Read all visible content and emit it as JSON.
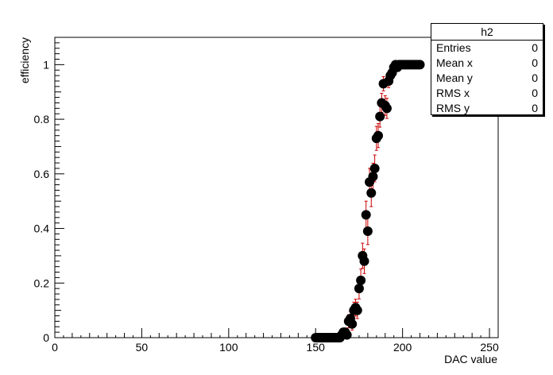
{
  "chart_data": {
    "type": "scatter",
    "title": "",
    "xlabel": "DAC value",
    "ylabel": "efficiency",
    "xlim": [
      0,
      255
    ],
    "ylim": [
      0,
      1.1
    ],
    "x_ticks": [
      0,
      50,
      100,
      150,
      200,
      250
    ],
    "y_ticks": [
      0,
      0.2,
      0.4,
      0.6,
      0.8,
      1
    ],
    "x_tick_labels": [
      "0",
      "50",
      "100",
      "150",
      "200",
      "250"
    ],
    "y_tick_labels": [
      "0",
      "0.2",
      "0.4",
      "0.6",
      "0.8",
      "1"
    ],
    "marker_color": "#000000",
    "error_bar_color": "#cc0000",
    "series": [
      {
        "name": "h2",
        "x": [
          150,
          151,
          152,
          153,
          154,
          155,
          156,
          157,
          158,
          159,
          160,
          161,
          162,
          163,
          164,
          165,
          166,
          167,
          168,
          169,
          170,
          171,
          172,
          173,
          174,
          175,
          176,
          177,
          178,
          179,
          180,
          181,
          182,
          183,
          184,
          185,
          186,
          187,
          188,
          189,
          190,
          191,
          192,
          193,
          194,
          195,
          196,
          197,
          198,
          199,
          200,
          201,
          202,
          203,
          204,
          205,
          206,
          207,
          208,
          209,
          210
        ],
        "y": [
          0,
          0,
          0,
          0,
          0,
          0,
          0,
          0,
          0,
          0,
          0,
          0,
          0,
          0,
          0,
          0.01,
          0.02,
          0.02,
          0.01,
          0.06,
          0.07,
          0.05,
          0.1,
          0.11,
          0.1,
          0.18,
          0.21,
          0.3,
          0.28,
          0.45,
          0.39,
          0.57,
          0.53,
          0.59,
          0.62,
          0.73,
          0.74,
          0.81,
          0.86,
          0.93,
          0.85,
          0.84,
          0.94,
          0.96,
          0.97,
          0.99,
          1,
          0.99,
          1,
          1,
          1,
          1,
          1,
          1,
          1,
          1,
          1,
          1,
          1,
          1,
          1
        ],
        "err": [
          0,
          0,
          0,
          0,
          0,
          0,
          0,
          0,
          0,
          0,
          0,
          0,
          0,
          0,
          0,
          0.01,
          0.014,
          0.014,
          0.01,
          0.024,
          0.026,
          0.022,
          0.03,
          0.031,
          0.03,
          0.038,
          0.041,
          0.046,
          0.045,
          0.05,
          0.049,
          0.05,
          0.05,
          0.049,
          0.049,
          0.044,
          0.044,
          0.039,
          0.035,
          0.026,
          0.036,
          0.037,
          0.024,
          0.02,
          0.017,
          0.01,
          0,
          0.01,
          0,
          0,
          0,
          0,
          0,
          0,
          0,
          0,
          0,
          0,
          0,
          0,
          0
        ]
      }
    ]
  },
  "stats_box": {
    "title": "h2",
    "rows": [
      {
        "label": "Entries",
        "value": "0"
      },
      {
        "label": "Mean x",
        "value": "0"
      },
      {
        "label": "Mean y",
        "value": "0"
      },
      {
        "label": "RMS x",
        "value": "0"
      },
      {
        "label": "RMS y",
        "value": "0"
      }
    ]
  }
}
